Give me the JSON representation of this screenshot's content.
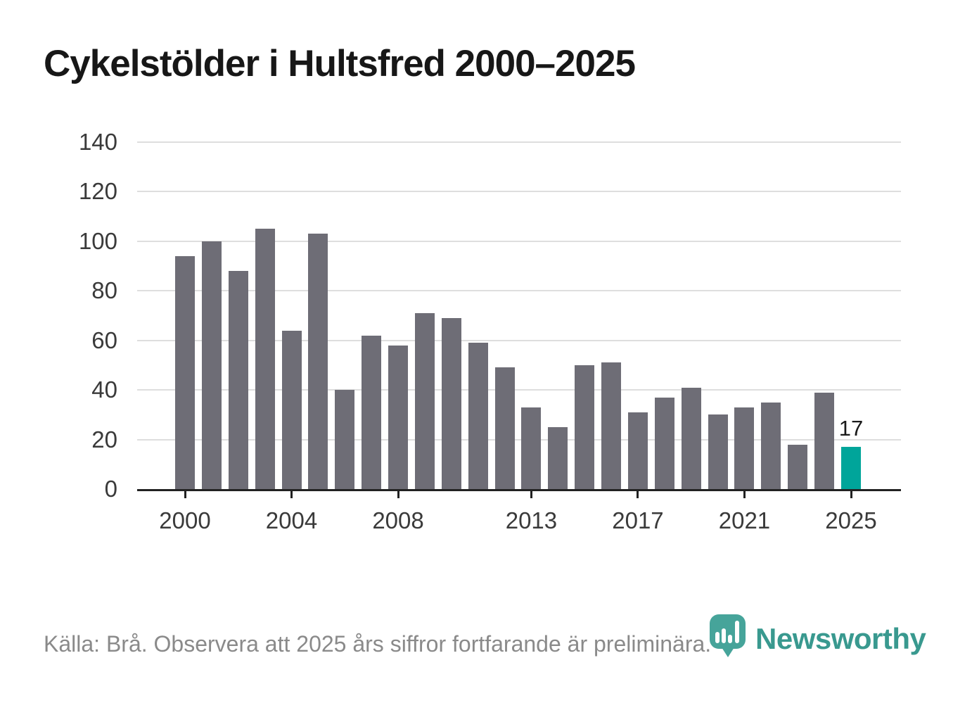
{
  "title": "Cykelstölder i Hultsfred 2000–2025",
  "chart_data": {
    "type": "bar",
    "title": "Cykelstölder i Hultsfred 2000–2025",
    "xlabel": "",
    "ylabel": "",
    "x": [
      2000,
      2001,
      2002,
      2003,
      2004,
      2005,
      2006,
      2007,
      2008,
      2009,
      2010,
      2011,
      2012,
      2013,
      2014,
      2015,
      2016,
      2017,
      2018,
      2019,
      2020,
      2021,
      2022,
      2023,
      2024,
      2025
    ],
    "values": [
      94,
      100,
      88,
      105,
      64,
      103,
      40,
      62,
      58,
      71,
      69,
      59,
      49,
      33,
      25,
      50,
      51,
      31,
      37,
      41,
      30,
      33,
      35,
      18,
      39,
      17
    ],
    "ylim": [
      0,
      140
    ],
    "yticks": [
      0,
      20,
      40,
      60,
      80,
      100,
      120,
      140
    ],
    "xticks": [
      2000,
      2004,
      2008,
      2013,
      2017,
      2021,
      2025
    ],
    "grid": true,
    "legend": "none",
    "highlight_x": 2025,
    "annotations": [
      {
        "x": 2025,
        "label": "17"
      }
    ],
    "colors": {
      "bar": "#6e6d76",
      "highlight": "#00a59a",
      "grid": "#dedede",
      "axis": "#222222",
      "tick_label": "#3a3a3a",
      "annotation": "#1a1a1a"
    }
  },
  "footer": {
    "source_note": "Källa: Brå. Observera att 2025 års siffror fortfarande är preliminära."
  },
  "logo": {
    "brand": "Newsworthy",
    "color": "#39998f",
    "icon": "map-pin-bar-chart-icon"
  }
}
